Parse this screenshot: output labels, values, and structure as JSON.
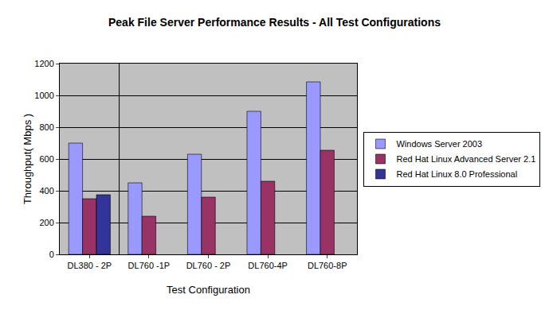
{
  "chart_data": {
    "type": "bar",
    "title": "Peak File Server Performance Results - All Test Configurations",
    "x_label": "Test Configuration",
    "y_label": "Throughput( Mbps )",
    "categories": [
      "DL380 - 2P",
      "DL760 -1P",
      "DL760 - 2P",
      "DL760-4P",
      "DL760-8P"
    ],
    "series": [
      {
        "name": "Windows Server 2003",
        "color": "#9999ff",
        "values": [
          700,
          450,
          630,
          900,
          1085
        ]
      },
      {
        "name": "Red Hat Linux Advanced Server 2.1",
        "color": "#993366",
        "values": [
          350,
          240,
          360,
          460,
          655
        ]
      },
      {
        "name": "Red Hat Linux 8.0 Professional",
        "color": "#333399",
        "values": [
          375,
          null,
          null,
          null,
          null
        ]
      }
    ],
    "ylim": [
      0,
      1200
    ],
    "yticks": [
      0,
      200,
      400,
      600,
      800,
      1000,
      1200
    ],
    "grid": true,
    "legend": "right"
  }
}
